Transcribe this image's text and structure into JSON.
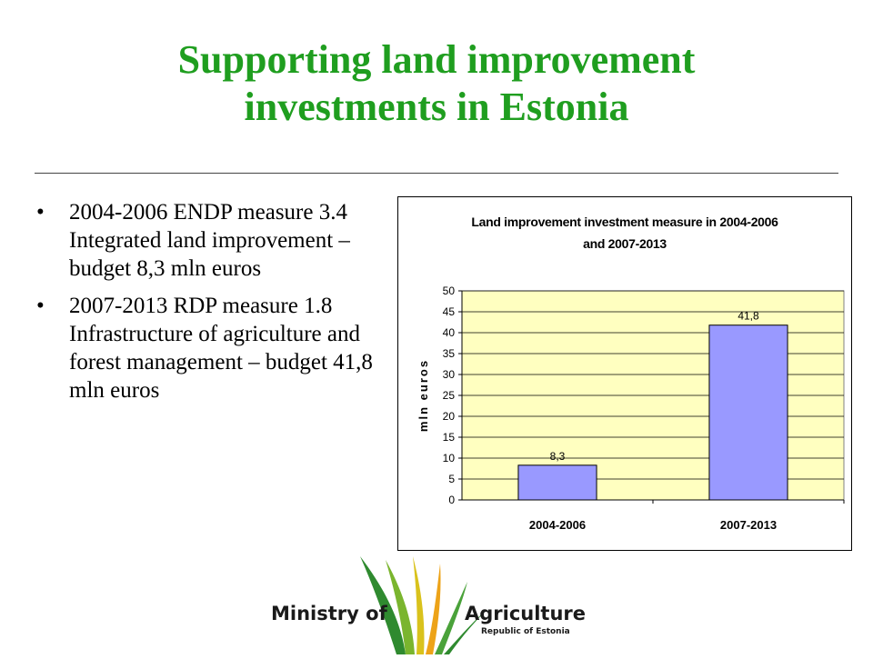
{
  "slide": {
    "title_line1": "Supporting land improvement",
    "title_line2": "investments in Estonia",
    "bullets": [
      "2004-2006 ENDP measure 3.4 Integrated land improvement – budget 8,3 mln euros",
      "2007-2013 RDP measure 1.8 Infrastructure of agriculture and forest management – budget 41,8 mln euros"
    ],
    "bullet_marker": "•",
    "title_color": "#1f9e1f"
  },
  "logo": {
    "left_text": "Ministry of",
    "right_text": "Agriculture",
    "subtitle": "Republic of Estonia",
    "icon": "wheat-ears-logo-icon"
  },
  "chart_data": {
    "type": "bar",
    "title_line1": "Land improvement investment measure in 2004-2006",
    "title_line2": "and 2007-2013",
    "categories": [
      "2004-2006",
      "2007-2013"
    ],
    "values": [
      8.3,
      41.8
    ],
    "data_labels": [
      "8,3",
      "41,8"
    ],
    "ylabel": "mln euros",
    "xlabel": "",
    "ylim": [
      0,
      50
    ],
    "yticks": [
      0,
      5,
      10,
      15,
      20,
      25,
      30,
      35,
      40,
      45,
      50
    ],
    "grid": true,
    "legend": "none",
    "colors": {
      "bar": "#9999ff",
      "plot_bg": "#ffffc0",
      "grid": "#000000"
    }
  }
}
